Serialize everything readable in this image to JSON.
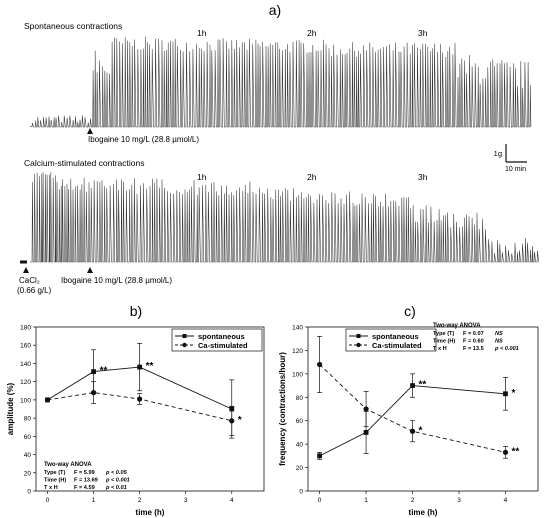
{
  "figure": {
    "panel_a_label": "a)",
    "panel_b_label": "b)",
    "panel_c_label": "c)"
  },
  "traces": {
    "top": {
      "title": "Spontaneous contractions",
      "hour_labels": [
        "1h",
        "2h",
        "3h"
      ],
      "drug_label": "Ibogaine 10 mg/L (28.8 µmol/L)"
    },
    "bottom": {
      "title": "Calcium-stimulated contractions",
      "hour_labels": [
        "1h",
        "2h",
        "3h"
      ],
      "cacl_label": "CaCl₂",
      "cacl_dose": "(0.66 g/L)",
      "drug_label": "Ibogaine 10 mg/L (28.8 µmol/L)"
    },
    "scale_bar": {
      "vertical": "1g",
      "horizontal": "10 min"
    }
  },
  "chart_data": [
    {
      "type": "line",
      "panel": "b)",
      "xlabel": "time (h)",
      "ylabel": "amplitude (%)",
      "xlim": [
        -0.25,
        4.7
      ],
      "ylim": [
        0,
        180
      ],
      "xticks": [
        0,
        1,
        2,
        3,
        4
      ],
      "yticks": [
        0,
        20,
        40,
        60,
        80,
        100,
        120,
        140,
        160,
        180
      ],
      "legend_position": "top-right",
      "series": [
        {
          "name": "spontaneous",
          "style": "solid",
          "marker": "square",
          "x": [
            0,
            1,
            2,
            4
          ],
          "values": [
            100,
            131,
            136,
            90
          ],
          "err": [
            0,
            24,
            26,
            32
          ]
        },
        {
          "name": "Ca-stimulated",
          "style": "dashed",
          "marker": "circle",
          "x": [
            0,
            1,
            2,
            4
          ],
          "values": [
            100,
            108,
            101,
            77
          ],
          "err": [
            0,
            12,
            6,
            16
          ]
        }
      ],
      "significance": [
        {
          "x": 1,
          "y": 131,
          "label": "**"
        },
        {
          "x": 2,
          "y": 136,
          "label": "**"
        },
        {
          "x": 4,
          "y": 77,
          "label": "*"
        }
      ],
      "stats": {
        "title": "Two-way ANOVA",
        "rows": [
          {
            "factor": "Type (T)",
            "F": "F = 5.99",
            "p": "p < 0.05"
          },
          {
            "factor": "Time (H)",
            "F": "F = 13.69",
            "p": "p < 0.001"
          },
          {
            "factor": "T x H",
            "F": "F = 4.59",
            "p": "p < 0.01"
          }
        ]
      }
    },
    {
      "type": "line",
      "panel": "c)",
      "xlabel": "time (h)",
      "ylabel": "frequency (contractions/hour)",
      "xlim": [
        -0.25,
        4.7
      ],
      "ylim": [
        0,
        140
      ],
      "xticks": [
        0,
        1,
        2,
        3,
        4
      ],
      "yticks": [
        0,
        20,
        40,
        60,
        80,
        100,
        120,
        140
      ],
      "legend_position": "top-left",
      "series": [
        {
          "name": "spontaneous",
          "style": "solid",
          "marker": "square",
          "x": [
            0,
            1,
            2,
            4
          ],
          "values": [
            30,
            50,
            90,
            83
          ],
          "err": [
            3,
            18,
            10,
            14
          ]
        },
        {
          "name": "Ca-stimulated",
          "style": "dashed",
          "marker": "circle",
          "x": [
            0,
            1,
            2,
            4
          ],
          "values": [
            108,
            70,
            51,
            33
          ],
          "err": [
            24,
            15,
            9,
            5
          ]
        }
      ],
      "significance": [
        {
          "x": 2,
          "y": 90,
          "label": "**"
        },
        {
          "x": 2,
          "y": 51,
          "label": "*"
        },
        {
          "x": 4,
          "y": 83,
          "label": "*"
        },
        {
          "x": 4,
          "y": 33,
          "label": "**"
        }
      ],
      "stats": {
        "title": "Two-way ANOVA",
        "rows": [
          {
            "factor": "Type (T)",
            "F": "F = 0.07",
            "p": "NS"
          },
          {
            "factor": "Time (H)",
            "F": "F = 0.60",
            "p": "NS"
          },
          {
            "factor": "T x H",
            "F": "F = 13.5",
            "p": "p < 0.001"
          }
        ]
      }
    }
  ]
}
